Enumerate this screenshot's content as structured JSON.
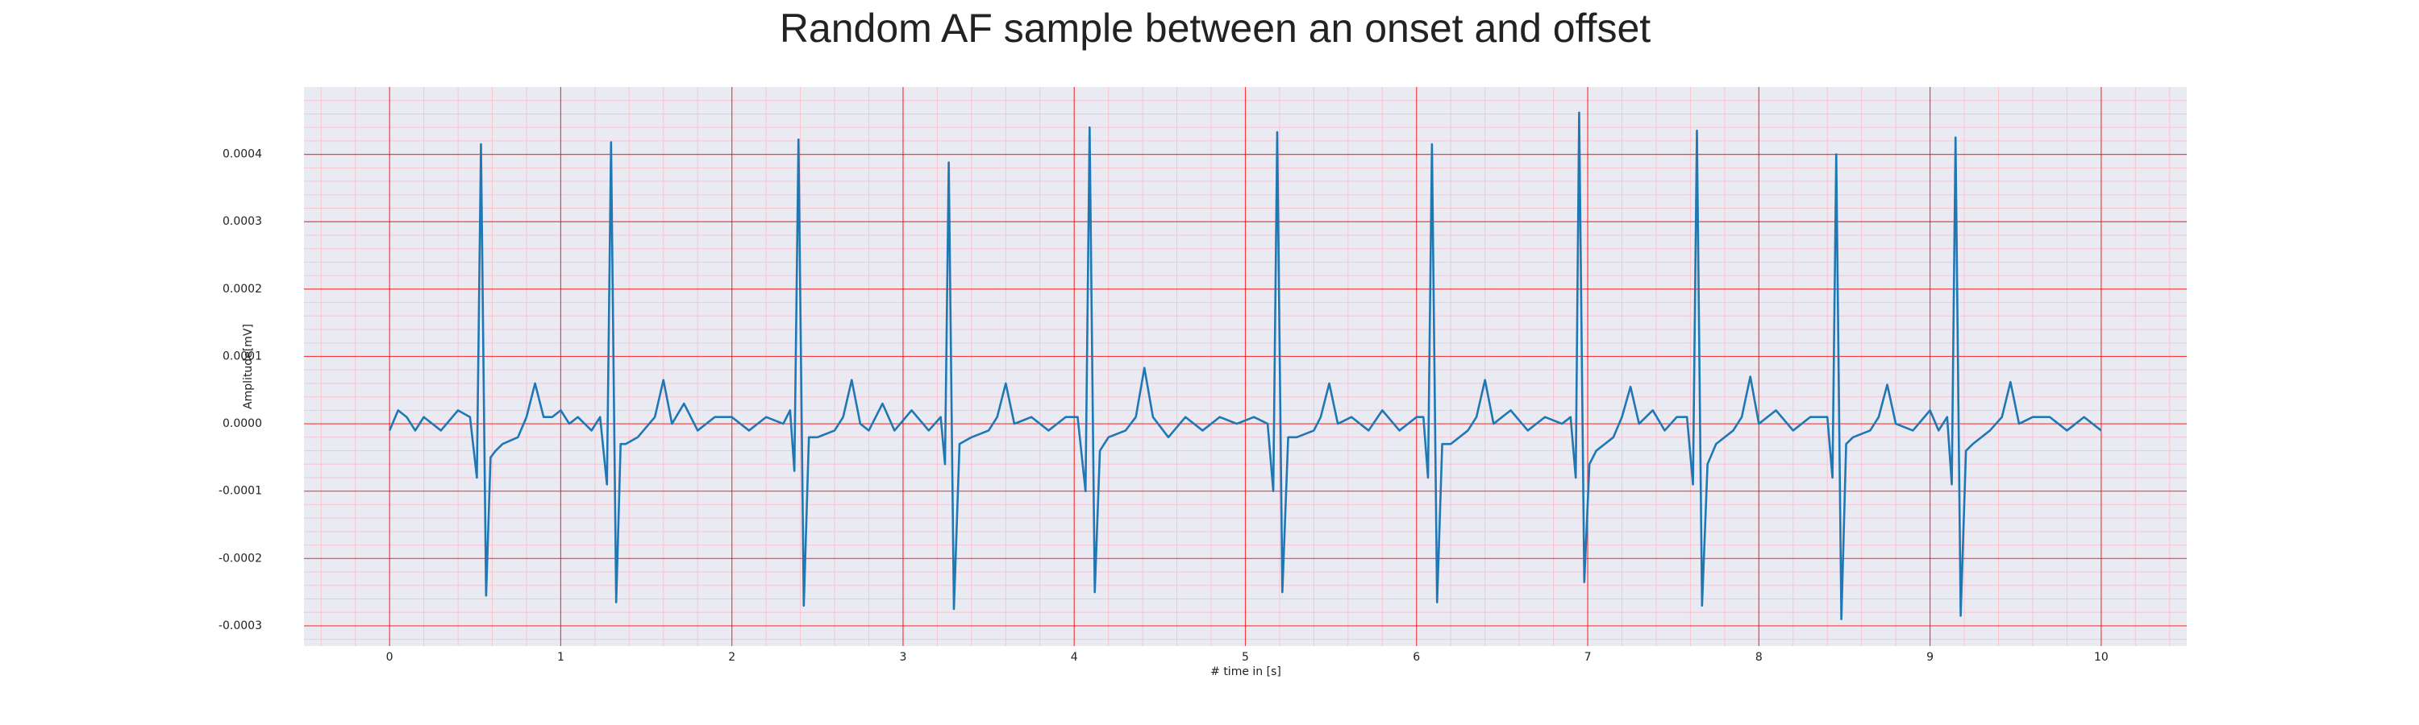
{
  "chart_data": {
    "type": "line",
    "title": "Random AF sample between an onset and offset",
    "xlabel": "# time in [s]",
    "ylabel": "Amplitude[mV]",
    "color": "#1f77b4",
    "background": "#eaeaf2",
    "grid": true,
    "grid_color": "#ff0000",
    "minor_grid": true,
    "minor_grid_color": "#ffb6c1",
    "xlim": [
      -0.5,
      10.5
    ],
    "ylim": [
      -0.00033,
      0.0005
    ],
    "xticks": [
      0,
      1,
      2,
      3,
      4,
      5,
      6,
      7,
      8,
      9,
      10
    ],
    "yticks": [
      -0.0003,
      -0.0002,
      -0.0001,
      {
        "value": 0,
        "label": "0.0000"
      },
      0.0001,
      0.0002,
      0.0003,
      0.0004
    ],
    "xminorticks": [
      -0.4,
      -0.2,
      0.2,
      0.4,
      0.6,
      0.8,
      1.2,
      1.4,
      1.6,
      1.8,
      2.2,
      2.4,
      2.6,
      2.8,
      3.2,
      3.4,
      3.6,
      3.8,
      4.2,
      4.4,
      4.6,
      4.8,
      5.2,
      5.4,
      5.6,
      5.8,
      6.2,
      6.4,
      6.6,
      6.8,
      7.2,
      7.4,
      7.6,
      7.8,
      8.2,
      8.4,
      8.6,
      8.8,
      9.2,
      9.4,
      9.6,
      9.8,
      10.2,
      10.4
    ],
    "yminorticks": [
      -0.00032,
      -0.00028,
      -0.00026,
      -0.00024,
      -0.00022,
      -0.00018,
      -0.00016,
      -0.00014,
      -0.00012,
      -8e-05,
      -6e-05,
      -4e-05,
      -2e-05,
      2e-05,
      4e-05,
      6e-05,
      8e-05,
      0.00012,
      0.00014,
      0.00016,
      0.00018,
      0.00022,
      0.00024,
      0.00026,
      0.00028,
      0.00032,
      0.00034,
      0.00036,
      0.00038,
      0.00042,
      0.00044,
      0.00046,
      0.00048
    ],
    "x": [
      0,
      0.05,
      0.1,
      0.15,
      0.2,
      0.3,
      0.4,
      0.47,
      0.51,
      0.534,
      0.564,
      0.59,
      0.62,
      0.66,
      0.75,
      0.8,
      0.85,
      0.9,
      0.95,
      1.0,
      1.05,
      1.1,
      1.18,
      1.23,
      1.27,
      1.294,
      1.324,
      1.35,
      1.38,
      1.45,
      1.55,
      1.6,
      1.65,
      1.72,
      1.8,
      1.9,
      2.0,
      2.1,
      2.2,
      2.3,
      2.34,
      2.365,
      2.389,
      2.42,
      2.45,
      2.5,
      2.6,
      2.65,
      2.7,
      2.75,
      2.8,
      2.88,
      2.95,
      3.05,
      3.15,
      3.22,
      3.245,
      3.267,
      3.297,
      3.33,
      3.4,
      3.5,
      3.55,
      3.6,
      3.65,
      3.75,
      3.85,
      3.95,
      4.02,
      4.066,
      4.09,
      4.12,
      4.15,
      4.2,
      4.3,
      4.36,
      4.41,
      4.46,
      4.55,
      4.65,
      4.75,
      4.85,
      4.95,
      5.05,
      5.13,
      5.163,
      5.186,
      5.216,
      5.25,
      5.3,
      5.4,
      5.44,
      5.49,
      5.54,
      5.62,
      5.72,
      5.8,
      5.9,
      6.0,
      6.04,
      6.067,
      6.09,
      6.12,
      6.15,
      6.2,
      6.3,
      6.35,
      6.4,
      6.45,
      6.55,
      6.65,
      6.75,
      6.85,
      6.9,
      6.93,
      6.95,
      6.98,
      7.01,
      7.05,
      7.15,
      7.2,
      7.25,
      7.3,
      7.38,
      7.45,
      7.52,
      7.58,
      7.615,
      7.638,
      7.668,
      7.7,
      7.75,
      7.85,
      7.9,
      7.95,
      8.0,
      8.1,
      8.2,
      8.3,
      8.4,
      8.43,
      8.452,
      8.482,
      8.51,
      8.55,
      8.65,
      8.7,
      8.75,
      8.8,
      8.9,
      9.0,
      9.05,
      9.1,
      9.127,
      9.149,
      9.179,
      9.21,
      9.25,
      9.35,
      9.42,
      9.47,
      9.52,
      9.6,
      9.7,
      9.8,
      9.9,
      10.0
    ],
    "values": [
      -1e-05,
      2e-05,
      1e-05,
      -1e-05,
      1e-05,
      -1e-05,
      2e-05,
      1e-05,
      -8e-05,
      0.000415,
      -0.000255,
      -5e-05,
      -4e-05,
      -3e-05,
      -2e-05,
      1e-05,
      6e-05,
      1e-05,
      1e-05,
      2e-05,
      0,
      1e-05,
      -1e-05,
      1e-05,
      -9e-05,
      0.000418,
      -0.000265,
      -3e-05,
      -3e-05,
      -2e-05,
      1e-05,
      6.5e-05,
      0,
      3e-05,
      -1e-05,
      1e-05,
      1e-05,
      -1e-05,
      1e-05,
      0,
      2e-05,
      -7e-05,
      0.000422,
      -0.00027,
      -2e-05,
      -2e-05,
      -1e-05,
      1e-05,
      6.5e-05,
      0,
      -1e-05,
      3e-05,
      -1e-05,
      2e-05,
      -1e-05,
      1e-05,
      -6e-05,
      0.000388,
      -0.000275,
      -3e-05,
      -2e-05,
      -1e-05,
      1e-05,
      6e-05,
      0,
      1e-05,
      -1e-05,
      1e-05,
      1e-05,
      -0.0001,
      0.00044,
      -0.00025,
      -4e-05,
      -2e-05,
      -1e-05,
      1e-05,
      8.3e-05,
      1e-05,
      -2e-05,
      1e-05,
      -1e-05,
      1e-05,
      0,
      1e-05,
      0,
      -0.0001,
      0.000433,
      -0.00025,
      -2e-05,
      -2e-05,
      -1e-05,
      1e-05,
      6e-05,
      0,
      1e-05,
      -1e-05,
      2e-05,
      -1e-05,
      1e-05,
      1e-05,
      -8e-05,
      0.000415,
      -0.000265,
      -3e-05,
      -3e-05,
      -1e-05,
      1e-05,
      6.5e-05,
      0,
      2e-05,
      -1e-05,
      1e-05,
      0,
      1e-05,
      -8e-05,
      0.000462,
      -0.000235,
      -6e-05,
      -4e-05,
      -2e-05,
      1e-05,
      5.5e-05,
      0,
      2e-05,
      -1e-05,
      1e-05,
      1e-05,
      -9e-05,
      0.000435,
      -0.00027,
      -6e-05,
      -3e-05,
      -1e-05,
      1e-05,
      7e-05,
      0,
      2e-05,
      -1e-05,
      1e-05,
      1e-05,
      -8e-05,
      0.0004,
      -0.00029,
      -3e-05,
      -2e-05,
      -1e-05,
      1e-05,
      5.8e-05,
      0,
      -1e-05,
      2e-05,
      -1e-05,
      1e-05,
      -9e-05,
      0.000425,
      -0.000285,
      -4e-05,
      -3e-05,
      -1e-05,
      1e-05,
      6.2e-05,
      0,
      1e-05,
      1e-05,
      -1e-05,
      1e-05,
      -1e-05
    ]
  }
}
